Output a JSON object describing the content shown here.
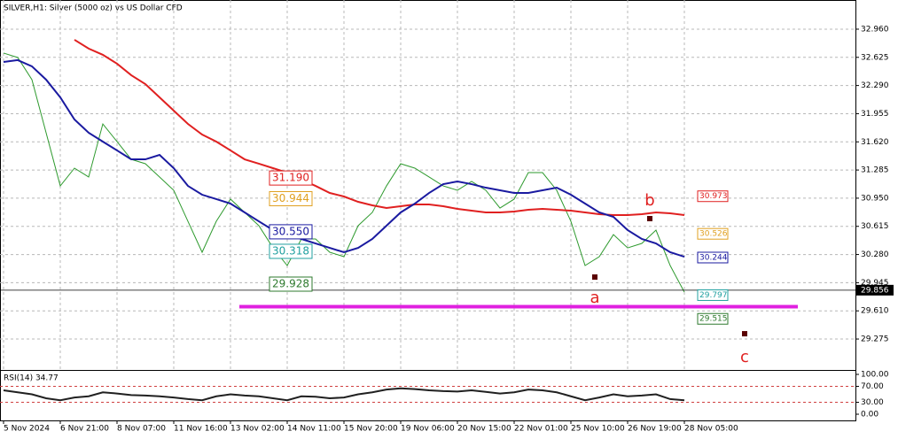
{
  "chart_data": [
    {
      "type": "line",
      "title": "SILVER,H1:  Silver (5000 oz) vs US Dollar CFD",
      "categories": [
        "5 Nov 2024",
        null,
        null,
        null,
        "6 Nov 21:00",
        null,
        null,
        null,
        "8 Nov 07:00",
        null,
        null,
        null,
        "11 Nov 16:00",
        null,
        null,
        null,
        "13 Nov 02:00",
        null,
        null,
        null,
        "14 Nov 11:00",
        null,
        null,
        null,
        "15 Nov 20:00",
        null,
        null,
        null,
        "19 Nov 06:00",
        null,
        null,
        null,
        "20 Nov 15:00",
        null,
        null,
        null,
        "22 Nov 01:00",
        null,
        null,
        null,
        "25 Nov 10:00",
        null,
        null,
        null,
        "26 Nov 19:00",
        null,
        null,
        null,
        "28 Nov 05:00"
      ],
      "series": [
        {
          "color": "#2e9a2e",
          "values": [
            32.676,
            32.623,
            32.36,
            31.728,
            31.096,
            31.307,
            31.202,
            31.833,
            31.623,
            31.412,
            31.36,
            31.202,
            31.044,
            30.675,
            30.307,
            30.675,
            30.939,
            30.781,
            30.623,
            30.359,
            30.149,
            30.465,
            30.465,
            30.307,
            30.254,
            30.623,
            30.781,
            31.096,
            31.36,
            31.307,
            31.202,
            31.096,
            31.044,
            31.149,
            31.044,
            30.833,
            30.939,
            31.254,
            31.254,
            31.044,
            30.675,
            30.149,
            30.254,
            30.517,
            30.359,
            30.412,
            30.57,
            30.149,
            29.833
          ]
        },
        {
          "color": "#e02020",
          "values": [
            null,
            null,
            null,
            null,
            null,
            32.834,
            32.729,
            32.655,
            32.55,
            32.413,
            32.307,
            32.149,
            31.991,
            31.833,
            31.707,
            31.623,
            31.518,
            31.412,
            31.36,
            31.307,
            31.254,
            31.17,
            31.096,
            31.012,
            30.97,
            30.907,
            30.865,
            30.833,
            30.854,
            30.875,
            30.875,
            30.854,
            30.823,
            30.802,
            30.781,
            30.781,
            30.791,
            30.812,
            30.823,
            30.812,
            30.802,
            30.781,
            30.76,
            30.749,
            30.749,
            30.76,
            30.781,
            30.77,
            30.749
          ]
        },
        {
          "color": "#1a1aa0",
          "values": [
            32.57,
            32.592,
            32.518,
            32.36,
            32.149,
            31.886,
            31.728,
            31.623,
            31.518,
            31.412,
            31.412,
            31.465,
            31.307,
            31.096,
            30.991,
            30.939,
            30.886,
            30.781,
            30.675,
            30.57,
            30.517,
            30.465,
            30.412,
            30.359,
            30.307,
            30.359,
            30.465,
            30.623,
            30.781,
            30.886,
            31.012,
            31.117,
            31.149,
            31.117,
            31.075,
            31.044,
            31.012,
            31.012,
            31.044,
            31.075,
            30.991,
            30.886,
            30.781,
            30.728,
            30.57,
            30.465,
            30.412,
            30.307,
            30.254
          ]
        }
      ],
      "ylim": [
        28.907,
        33.307
      ],
      "yticks": [
        {
          "value": 32.96,
          "label": "32.960"
        },
        {
          "value": 32.625,
          "label": "32.625"
        },
        {
          "value": 32.29,
          "label": "32.290"
        },
        {
          "value": 31.955,
          "label": "31.955"
        },
        {
          "value": 31.62,
          "label": "31.620"
        },
        {
          "value": 31.285,
          "label": "31.285"
        },
        {
          "value": 30.95,
          "label": "30.950"
        },
        {
          "value": 30.615,
          "label": "30.615"
        },
        {
          "value": 30.28,
          "label": "30.280"
        },
        {
          "value": 29.945,
          "label": "29.945"
        },
        {
          "value": 29.61,
          "label": "29.610"
        },
        {
          "value": 29.275,
          "label": "29.275"
        }
      ],
      "grid": true,
      "left_levels": [
        {
          "value": 31.19,
          "label": "31.190",
          "color": "#e02020"
        },
        {
          "value": 30.944,
          "label": "30.944",
          "color": "#e0a020"
        },
        {
          "value": 30.55,
          "label": "30.550",
          "color": "#1a1aa0"
        },
        {
          "value": 30.318,
          "label": "30.318",
          "color": "#20a0a0"
        },
        {
          "value": 29.928,
          "label": "29.928",
          "color": "#2e7a2e"
        }
      ],
      "right_levels": [
        {
          "value": 30.973,
          "label": "30.973",
          "color": "#e02020"
        },
        {
          "value": 30.526,
          "label": "30.526",
          "color": "#e0a020"
        },
        {
          "value": 30.244,
          "label": "30.244",
          "color": "#1a1aa0"
        },
        {
          "value": 29.797,
          "label": "29.797",
          "color": "#20a0a0"
        },
        {
          "value": 29.515,
          "label": "29.515",
          "color": "#2e7a2e"
        }
      ],
      "current_price": {
        "value": 29.856,
        "label": "29.856"
      },
      "support_line": {
        "value": 29.66,
        "color": "#e020e0"
      },
      "points": [
        {
          "label": "a",
          "value": 30.012
        },
        {
          "label": "b",
          "value": 30.707
        },
        {
          "label": "c",
          "value": 29.338
        }
      ]
    },
    {
      "type": "line",
      "title": "RSI(14) 34.77",
      "series": [
        {
          "color": "#202020",
          "values": [
            60,
            55,
            50,
            40,
            35,
            42,
            45,
            55,
            52,
            48,
            47,
            45,
            42,
            38,
            35,
            45,
            50,
            47,
            45,
            40,
            35,
            45,
            44,
            40,
            42,
            50,
            55,
            62,
            65,
            63,
            60,
            58,
            57,
            60,
            56,
            52,
            55,
            62,
            60,
            55,
            45,
            35,
            42,
            50,
            45,
            47,
            50,
            38,
            35
          ]
        }
      ],
      "ylim": [
        0,
        100
      ],
      "yticks": [
        {
          "value": 100,
          "label": "100.00"
        },
        {
          "value": 70,
          "label": "70.00"
        },
        {
          "value": 30,
          "label": "30.00"
        },
        {
          "value": 0,
          "label": "0.00"
        }
      ]
    }
  ]
}
